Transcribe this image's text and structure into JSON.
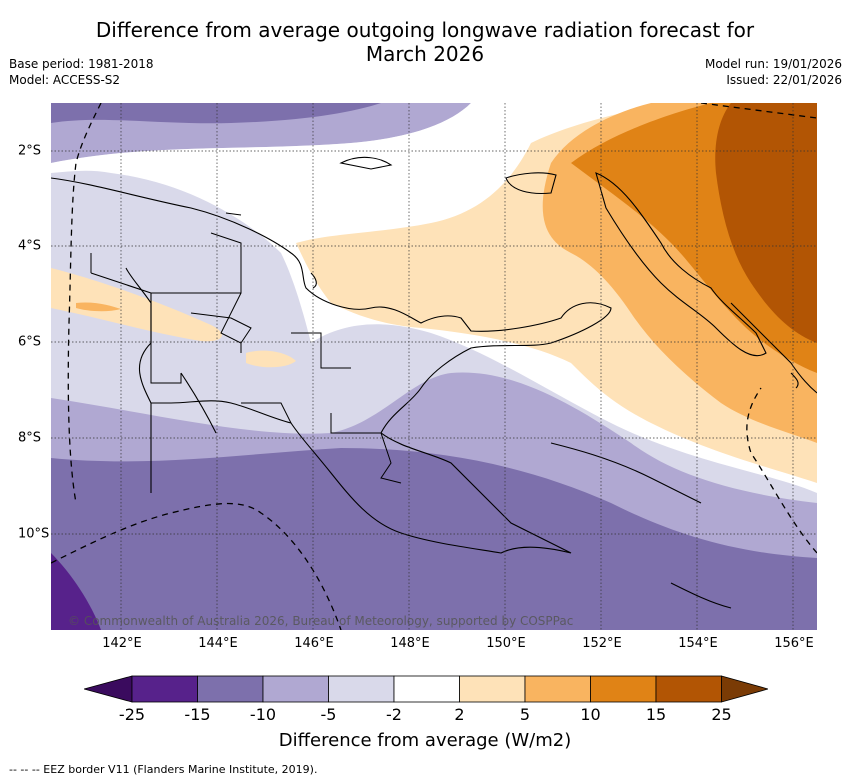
{
  "title": "Difference from average outgoing longwave radiation forecast for March 2026",
  "title_line1": "Difference from average outgoing longwave radiation forecast for",
  "title_line2": "March 2026",
  "base_period": "Base period: 1981-2018",
  "model": "Model: ACCESS-S2",
  "model_run": "Model run: 19/01/2026",
  "issued": "Issued: 22/01/2026",
  "copyright": "© Commonwealth of Australia 2026, Bureau of Meteorology, supported by COSPPac",
  "legend_text": "--  --  -- EEZ border V11 (Flanders Marine Institute, 2019).",
  "lon_labels": [
    "142°E",
    "144°E",
    "146°E",
    "148°E",
    "150°E",
    "152°E",
    "154°E",
    "156°E"
  ],
  "lat_labels": [
    "2°S",
    "4°S",
    "6°S",
    "8°S",
    "10°S"
  ],
  "colorbar": {
    "title": "Difference from average (W/m2)",
    "ticks": [
      "-25",
      "-15",
      "-10",
      "-5",
      "-2",
      "2",
      "5",
      "10",
      "15",
      "25"
    ],
    "colors": [
      "#3a0b5e",
      "#57228b",
      "#7d70ac",
      "#b0a8d2",
      "#d9d9ea",
      "#ffffff",
      "#fee2b8",
      "#f9b460",
      "#e08316",
      "#b25504",
      "#7a3b05"
    ]
  }
}
